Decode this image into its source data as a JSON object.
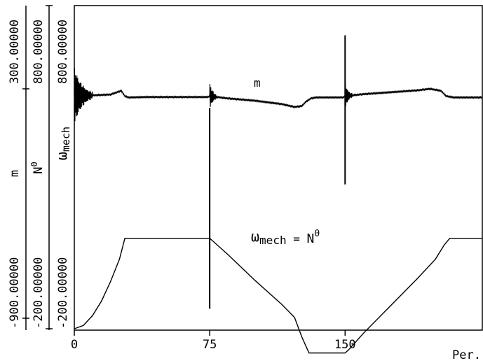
{
  "chart_data": {
    "type": "line",
    "title": "",
    "xlabel": "Per.",
    "x_ticks": [
      "0",
      "75",
      "150"
    ],
    "xlim": [
      0,
      226
    ],
    "y_axes": [
      {
        "label": "m",
        "top_tick": "300.00000",
        "bottom_tick": "-900.00000",
        "ylim": [
          -900,
          300
        ]
      },
      {
        "label_base": "N",
        "label_sup": "0",
        "top_tick": "800.00000",
        "bottom_tick": "-200.00000",
        "ylim": [
          -200,
          800
        ]
      },
      {
        "label_base": "ω",
        "label_sub": "mech",
        "top_tick": "800.00000",
        "bottom_tick": "-200.00000",
        "ylim": [
          -200,
          800
        ]
      }
    ],
    "annotations": {
      "m_label": "m",
      "speed_label": {
        "lhs_base": "ω",
        "lhs_sub": "mech",
        "eq": " = ",
        "rhs_base": "N",
        "rhs_sup": "0"
      }
    },
    "series": [
      {
        "name": "m",
        "points": [
          [
            0,
            262
          ],
          [
            10,
            266
          ],
          [
            20,
            270
          ],
          [
            26,
            290
          ],
          [
            28,
            262
          ],
          [
            30,
            255
          ],
          [
            40,
            257
          ],
          [
            74,
            257
          ],
          [
            75,
            262
          ],
          [
            85,
            250
          ],
          [
            100,
            238
          ],
          [
            115,
            220
          ],
          [
            122,
            205
          ],
          [
            126,
            210
          ],
          [
            128,
            230
          ],
          [
            131,
            250
          ],
          [
            134,
            255
          ],
          [
            149,
            255
          ],
          [
            150,
            262
          ],
          [
            160,
            272
          ],
          [
            175,
            282
          ],
          [
            190,
            292
          ],
          [
            197,
            300
          ],
          [
            203,
            290
          ],
          [
            206,
            262
          ],
          [
            210,
            255
          ],
          [
            226,
            255
          ]
        ],
        "transients": [
          {
            "x": 0,
            "duration": 10,
            "amplitude": 150
          },
          {
            "x": 75,
            "duration": 4,
            "amplitude": 70
          },
          {
            "x": 150,
            "duration": 4,
            "amplitude": 70
          }
        ],
        "spikes": [
          {
            "x": 75,
            "min": -850,
            "max": 200
          },
          {
            "x": 150,
            "min": -200,
            "max": 580
          }
        ]
      },
      {
        "name": "ω_mech = N0",
        "points": [
          [
            0,
            -200
          ],
          [
            5,
            -190
          ],
          [
            10,
            -160
          ],
          [
            15,
            -115
          ],
          [
            20,
            -55
          ],
          [
            25,
            15
          ],
          [
            28,
            80
          ],
          [
            30,
            80
          ],
          [
            75,
            80
          ],
          [
            85,
            30
          ],
          [
            100,
            -50
          ],
          [
            115,
            -125
          ],
          [
            122,
            -165
          ],
          [
            126,
            -225
          ],
          [
            130,
            -275
          ],
          [
            135,
            -275
          ],
          [
            150,
            -275
          ],
          [
            152,
            -265
          ],
          [
            160,
            -215
          ],
          [
            175,
            -130
          ],
          [
            190,
            -45
          ],
          [
            200,
            15
          ],
          [
            205,
            60
          ],
          [
            208,
            80
          ],
          [
            210,
            80
          ],
          [
            226,
            80
          ]
        ]
      }
    ]
  }
}
